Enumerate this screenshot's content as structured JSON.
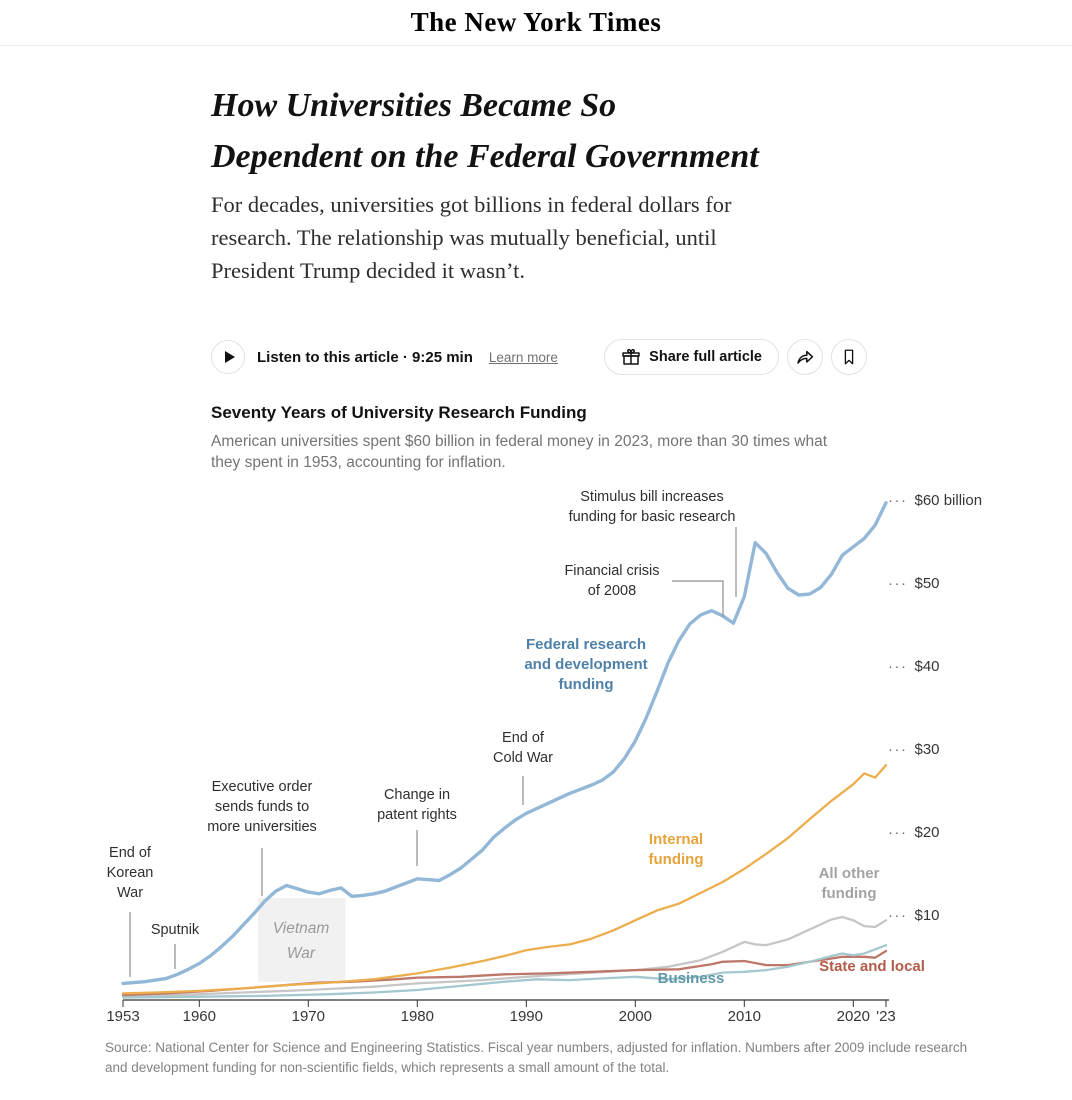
{
  "masthead": {
    "logo": "The New York Times"
  },
  "article": {
    "headline": "How Universities Became So\nDependent on the Federal Government",
    "subhead": "For decades, universities got billions in federal dollars for\nresearch. The relationship was mutually beneficial, until\nPresident Trump decided it wasn’t.",
    "listen": {
      "label": "Listen to this article · 9:25 min",
      "learn_more": "Learn more"
    },
    "share": {
      "share_full_article": "Share full article"
    }
  },
  "chart": {
    "title": "Seventy Years of University Research Funding",
    "subtitle": "American universities spent $60 billion in federal money in 2023, more than 30 times what\nthey spent in 1953, accounting for inflation.",
    "source": "Source: National Center for Science and Engineering Statistics. Fiscal year numbers, adjusted for inflation. Numbers after 2009 include research\nand development funding for non-scientific fields, which represents a small amount of the total."
  },
  "chart_data": {
    "type": "line",
    "x_range": [
      1953,
      2023
    ],
    "y_range": [
      0,
      62
    ],
    "unit": "billions of dollars",
    "y_ticks": [
      {
        "value": 60,
        "label": "$60 billion"
      },
      {
        "value": 50,
        "label": "$50"
      },
      {
        "value": 40,
        "label": "$40"
      },
      {
        "value": 30,
        "label": "$30"
      },
      {
        "value": 20,
        "label": "$20"
      },
      {
        "value": 10,
        "label": "$10"
      }
    ],
    "x_ticks": [
      {
        "value": 1953,
        "label": "1953"
      },
      {
        "value": 1960,
        "label": "1960"
      },
      {
        "value": 1970,
        "label": "1970"
      },
      {
        "value": 1980,
        "label": "1980"
      },
      {
        "value": 1990,
        "label": "1990"
      },
      {
        "value": 2000,
        "label": "2000"
      },
      {
        "value": 2010,
        "label": "2010"
      },
      {
        "value": 2020,
        "label": "2020"
      },
      {
        "value": 2023,
        "label": "'23"
      }
    ],
    "annotations": [
      {
        "id": "end-korean-war",
        "text": "End of\nKorean\nWar"
      },
      {
        "id": "sputnik",
        "text": "Sputnik"
      },
      {
        "id": "executive-order",
        "text": "Executive order\nsends funds to\nmore universities"
      },
      {
        "id": "patent-rights",
        "text": "Change in\npatent rights"
      },
      {
        "id": "end-cold-war",
        "text": "End of\nCold War"
      },
      {
        "id": "financial-crisis",
        "text": "Financial crisis\nof 2008"
      },
      {
        "id": "stimulus-bill",
        "text": "Stimulus bill increases\nfunding for basic research"
      }
    ],
    "event_band": {
      "label": "Vietnam\nWar",
      "x_from": 1965.4,
      "x_to": 1973.4
    },
    "series": [
      {
        "name": "All other funding",
        "label": "All other\nfunding",
        "color": "#c6c6c6",
        "label_color": "#a3a3a3",
        "points": [
          [
            1953,
            0.5
          ],
          [
            1958,
            0.6
          ],
          [
            1964,
            0.9
          ],
          [
            1970,
            1.2
          ],
          [
            1976,
            1.6
          ],
          [
            1980,
            2.0
          ],
          [
            1986,
            2.4
          ],
          [
            1990,
            2.8
          ],
          [
            1995,
            3.2
          ],
          [
            2000,
            3.6
          ],
          [
            2003,
            4.0
          ],
          [
            2006,
            4.8
          ],
          [
            2008,
            5.8
          ],
          [
            2010,
            7.0
          ],
          [
            2011,
            6.7
          ],
          [
            2012,
            6.6
          ],
          [
            2014,
            7.3
          ],
          [
            2016,
            8.5
          ],
          [
            2018,
            9.7
          ],
          [
            2019,
            10.0
          ],
          [
            2020,
            9.6
          ],
          [
            2021,
            8.9
          ],
          [
            2022,
            8.8
          ],
          [
            2023,
            9.6
          ]
        ]
      },
      {
        "name": "State and local",
        "label": "State and local",
        "color": "#bd7768",
        "label_color": "#b25b49",
        "points": [
          [
            1953,
            0.6
          ],
          [
            1957,
            0.8
          ],
          [
            1961,
            1.1
          ],
          [
            1965,
            1.5
          ],
          [
            1969,
            1.9
          ],
          [
            1971,
            2.1
          ],
          [
            1974,
            2.2
          ],
          [
            1978,
            2.5
          ],
          [
            1980,
            2.7
          ],
          [
            1984,
            2.8
          ],
          [
            1988,
            3.1
          ],
          [
            1992,
            3.2
          ],
          [
            1996,
            3.4
          ],
          [
            2000,
            3.6
          ],
          [
            2004,
            3.7
          ],
          [
            2007,
            4.3
          ],
          [
            2008,
            4.6
          ],
          [
            2010,
            4.7
          ],
          [
            2012,
            4.2
          ],
          [
            2014,
            4.2
          ],
          [
            2016,
            4.6
          ],
          [
            2018,
            5.0
          ],
          [
            2019,
            5.2
          ],
          [
            2021,
            5.2
          ],
          [
            2022,
            5.1
          ],
          [
            2023,
            5.9
          ]
        ]
      },
      {
        "name": "Business",
        "label": "Business",
        "color": "#a5c8ce",
        "label_color": "#5f98a9",
        "points": [
          [
            1953,
            0.3
          ],
          [
            1960,
            0.4
          ],
          [
            1966,
            0.5
          ],
          [
            1972,
            0.7
          ],
          [
            1976,
            0.9
          ],
          [
            1980,
            1.2
          ],
          [
            1984,
            1.7
          ],
          [
            1988,
            2.2
          ],
          [
            1991,
            2.5
          ],
          [
            1994,
            2.4
          ],
          [
            1997,
            2.6
          ],
          [
            2000,
            2.8
          ],
          [
            2003,
            2.5
          ],
          [
            2006,
            2.8
          ],
          [
            2008,
            3.3
          ],
          [
            2010,
            3.4
          ],
          [
            2012,
            3.6
          ],
          [
            2014,
            4.0
          ],
          [
            2016,
            4.6
          ],
          [
            2018,
            5.3
          ],
          [
            2019,
            5.6
          ],
          [
            2020,
            5.4
          ],
          [
            2021,
            5.6
          ],
          [
            2022,
            6.1
          ],
          [
            2023,
            6.6
          ]
        ]
      },
      {
        "name": "Internal funding",
        "label": "Internal\nfunding",
        "color": "#ecae4d",
        "label_color": "#e5a33c",
        "points": [
          [
            1953,
            0.8
          ],
          [
            1956,
            0.9
          ],
          [
            1960,
            1.1
          ],
          [
            1964,
            1.4
          ],
          [
            1968,
            1.8
          ],
          [
            1972,
            2.1
          ],
          [
            1976,
            2.5
          ],
          [
            1980,
            3.2
          ],
          [
            1983,
            3.9
          ],
          [
            1986,
            4.7
          ],
          [
            1988,
            5.3
          ],
          [
            1990,
            6.0
          ],
          [
            1992,
            6.4
          ],
          [
            1994,
            6.7
          ],
          [
            1996,
            7.4
          ],
          [
            1998,
            8.4
          ],
          [
            2000,
            9.6
          ],
          [
            2002,
            10.8
          ],
          [
            2004,
            11.6
          ],
          [
            2006,
            12.9
          ],
          [
            2008,
            14.2
          ],
          [
            2010,
            15.8
          ],
          [
            2012,
            17.6
          ],
          [
            2014,
            19.5
          ],
          [
            2016,
            21.8
          ],
          [
            2018,
            24.0
          ],
          [
            2020,
            26.0
          ],
          [
            2021,
            27.3
          ],
          [
            2022,
            26.8
          ],
          [
            2023,
            28.3
          ]
        ]
      },
      {
        "name": "Federal research and development funding",
        "label": "Federal research\nand development\nfunding",
        "color": "#93b7d7",
        "label_color": "#4f81a8",
        "points": [
          [
            1953,
            2.0
          ],
          [
            1954,
            2.1
          ],
          [
            1955,
            2.2
          ],
          [
            1956,
            2.4
          ],
          [
            1957,
            2.6
          ],
          [
            1958,
            3.1
          ],
          [
            1959,
            3.7
          ],
          [
            1960,
            4.4
          ],
          [
            1961,
            5.3
          ],
          [
            1962,
            6.4
          ],
          [
            1963,
            7.6
          ],
          [
            1964,
            9.0
          ],
          [
            1965,
            10.4
          ],
          [
            1966,
            11.9
          ],
          [
            1967,
            13.1
          ],
          [
            1968,
            13.8
          ],
          [
            1969,
            13.4
          ],
          [
            1970,
            13.0
          ],
          [
            1971,
            12.8
          ],
          [
            1972,
            13.2
          ],
          [
            1973,
            13.5
          ],
          [
            1974,
            12.5
          ],
          [
            1975,
            12.6
          ],
          [
            1976,
            12.8
          ],
          [
            1977,
            13.1
          ],
          [
            1978,
            13.6
          ],
          [
            1979,
            14.1
          ],
          [
            1980,
            14.6
          ],
          [
            1981,
            14.5
          ],
          [
            1982,
            14.4
          ],
          [
            1983,
            15.1
          ],
          [
            1984,
            15.9
          ],
          [
            1985,
            17.0
          ],
          [
            1986,
            18.1
          ],
          [
            1987,
            19.6
          ],
          [
            1988,
            20.7
          ],
          [
            1989,
            21.7
          ],
          [
            1990,
            22.5
          ],
          [
            1991,
            23.1
          ],
          [
            1992,
            23.7
          ],
          [
            1993,
            24.3
          ],
          [
            1994,
            24.9
          ],
          [
            1995,
            25.4
          ],
          [
            1996,
            25.9
          ],
          [
            1997,
            26.5
          ],
          [
            1998,
            27.5
          ],
          [
            1999,
            29.1
          ],
          [
            2000,
            31.2
          ],
          [
            2001,
            34.0
          ],
          [
            2002,
            37.2
          ],
          [
            2003,
            40.6
          ],
          [
            2004,
            43.3
          ],
          [
            2005,
            45.3
          ],
          [
            2006,
            46.4
          ],
          [
            2007,
            46.9
          ],
          [
            2008,
            46.3
          ],
          [
            2009,
            45.4
          ],
          [
            2010,
            48.6
          ],
          [
            2011,
            55.1
          ],
          [
            2012,
            53.8
          ],
          [
            2013,
            51.5
          ],
          [
            2014,
            49.6
          ],
          [
            2015,
            48.8
          ],
          [
            2016,
            48.9
          ],
          [
            2017,
            49.7
          ],
          [
            2018,
            51.3
          ],
          [
            2019,
            53.6
          ],
          [
            2020,
            54.6
          ],
          [
            2021,
            55.6
          ],
          [
            2022,
            57.2
          ],
          [
            2023,
            59.9
          ]
        ]
      }
    ]
  }
}
